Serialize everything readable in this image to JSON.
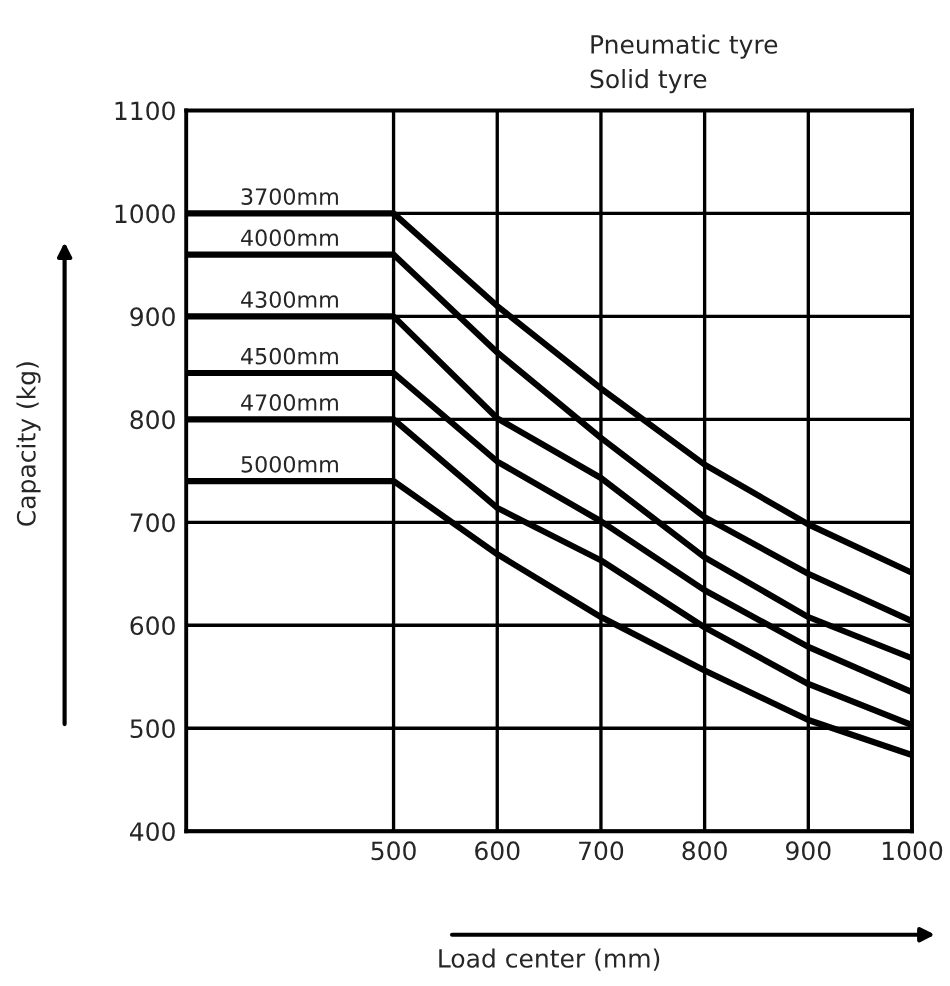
{
  "chart_data": {
    "type": "line",
    "xlabel": "Load center (mm)",
    "ylabel": "Capacity (kg)",
    "annotations": [
      "Pneumatic tyre",
      "Solid tyre"
    ],
    "x": [
      300,
      500,
      600,
      700,
      800,
      900,
      1000
    ],
    "series": [
      {
        "name": "3700mm",
        "color": "#000000",
        "values": [
          1000,
          1000,
          910,
          830,
          756,
          698,
          651
        ]
      },
      {
        "name": "4000mm",
        "color": "#000000",
        "values": [
          960,
          960,
          865,
          782,
          705,
          650,
          604
        ]
      },
      {
        "name": "4300mm",
        "color": "#000000",
        "values": [
          900,
          900,
          801,
          743,
          666,
          608,
          568
        ]
      },
      {
        "name": "4500mm",
        "color": "#000000",
        "values": [
          845,
          845,
          759,
          701,
          634,
          579,
          535
        ]
      },
      {
        "name": "4700mm",
        "color": "#000000",
        "values": [
          800,
          800,
          714,
          663,
          598,
          543,
          503
        ]
      },
      {
        "name": "5000mm",
        "color": "#000000",
        "values": [
          740,
          740,
          669,
          608,
          556,
          508,
          474
        ]
      }
    ],
    "xlim": [
      300,
      1000
    ],
    "xticks": [
      500,
      600,
      700,
      800,
      900,
      1000
    ],
    "ylim": [
      400,
      1100
    ],
    "yticks": [
      400,
      500,
      600,
      700,
      800,
      900,
      1000,
      1100
    ],
    "grid": true,
    "marker": "none",
    "line_style": "solid"
  }
}
